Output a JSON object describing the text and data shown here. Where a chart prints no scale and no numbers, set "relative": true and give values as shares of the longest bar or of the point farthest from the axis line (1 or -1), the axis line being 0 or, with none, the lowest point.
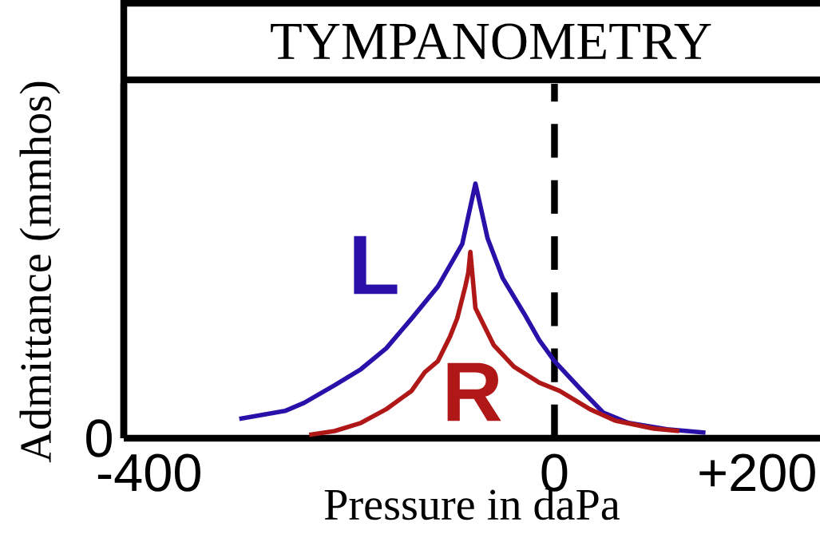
{
  "chart_data": {
    "type": "line",
    "title": "TYMPANOMETRY",
    "xlabel": "Pressure in daPa",
    "ylabel": "Admittance (mmhos)",
    "relative": true,
    "xlim": [
      -425,
      262
    ],
    "xticks": [
      -400,
      0,
      {
        "value": 200,
        "label": "+200"
      }
    ],
    "series": [
      {
        "name": "L",
        "color": "#2a10a8",
        "x": [
          -311,
          -266,
          -247,
          -217,
          -191,
          -166,
          -141,
          -115,
          -91,
          -78,
          -66,
          -51,
          -30,
          -15,
          0,
          25,
          48,
          73,
          111,
          149
        ],
        "values": [
          0.076,
          0.107,
          0.139,
          0.208,
          0.271,
          0.353,
          0.47,
          0.596,
          0.763,
          1.0,
          0.785,
          0.628,
          0.49,
          0.385,
          0.303,
          0.196,
          0.101,
          0.06,
          0.035,
          0.022
        ]
      },
      {
        "name": "R",
        "color": "#b01818",
        "x": [
          -242,
          -217,
          -191,
          -166,
          -141,
          -128,
          -115,
          -103,
          -96,
          -88,
          -85,
          -83,
          -78,
          -60,
          -40,
          -15,
          5,
          35,
          60,
          98,
          123
        ],
        "values": [
          0.013,
          0.028,
          0.06,
          0.114,
          0.186,
          0.259,
          0.303,
          0.4,
          0.47,
          0.596,
          0.65,
          0.732,
          0.511,
          0.366,
          0.281,
          0.218,
          0.186,
          0.114,
          0.069,
          0.038,
          0.028
        ]
      }
    ],
    "ref_lines": [
      {
        "axis": "x",
        "value": 0,
        "color": "#000000",
        "line_style": "dashed"
      }
    ],
    "annotations": [
      "0"
    ],
    "line_style": "solid",
    "marker": "none",
    "grid": false
  }
}
